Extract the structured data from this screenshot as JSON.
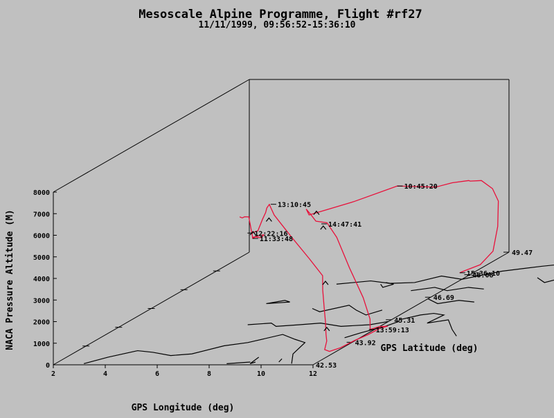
{
  "chart_data": {
    "type": "line3d",
    "title": "Mesoscale Alpine Programme, Flight #rf27",
    "subtitle": "11/11/1999, 09:56:52-15:36:10",
    "xlabel": "GPS Longitude (deg)",
    "ylabel": "GPS Latitude (deg)",
    "zlabel": "NACA Pressure Altitude (M)",
    "x_ticks": [
      "2",
      "4",
      "6",
      "8",
      "10",
      "12"
    ],
    "y_ticks": [
      "42.53",
      "43.92",
      "45.31",
      "46.69",
      "48.08",
      "49.47"
    ],
    "z_ticks": [
      "0",
      "1000",
      "2000",
      "3000",
      "4000",
      "5000",
      "6000",
      "7000",
      "8000"
    ],
    "xlim": [
      2,
      12
    ],
    "ylim": [
      42.53,
      49.47
    ],
    "zlim": [
      0,
      8000
    ],
    "track_color": "#e8103a",
    "annotations": [
      {
        "label": "13:10:45",
        "lon": 10.35,
        "lat": 42.55,
        "alt": 7420
      },
      {
        "label": "10:45:20",
        "lon": 13.1,
        "lat": 44.5,
        "alt": 6800
      },
      {
        "label": "12:22:16",
        "lon": 9.4,
        "lat": 42.6,
        "alt": 6050
      },
      {
        "label": "11:33:48",
        "lon": 9.6,
        "lat": 42.6,
        "alt": 5800
      },
      {
        "label": "14:47:41",
        "lon": 11.7,
        "lat": 43.1,
        "alt": 6100
      },
      {
        "label": "15:36:10",
        "lon": 11.7,
        "lat": 48.0,
        "alt": 150
      },
      {
        "label": "13:59:13",
        "lon": 11.9,
        "lat": 44.6,
        "alt": 80
      }
    ]
  }
}
